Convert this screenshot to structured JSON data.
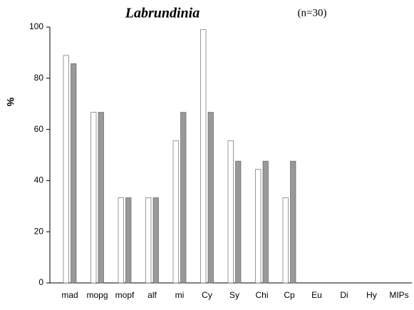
{
  "chart_data": {
    "type": "bar",
    "title": "Labrundinia",
    "annotation": "(n=30)",
    "y_label": "%",
    "categories": [
      "mad",
      "mopg",
      "mopf",
      "alf",
      "mi",
      "Cy",
      "Sy",
      "Chi",
      "Cp",
      "Eu",
      "Di",
      "Hy",
      "MIPs"
    ],
    "series": [
      {
        "color": "#ffffff",
        "values": [
          88.9,
          66.7,
          33.3,
          33.3,
          55.6,
          99,
          55.6,
          44.4,
          33.3,
          0,
          0,
          0,
          0
        ]
      },
      {
        "color": "#999999",
        "values": [
          85.7,
          66.7,
          33.3,
          33.3,
          66.7,
          66.7,
          47.6,
          47.6,
          47.6,
          0,
          0,
          0,
          0
        ]
      }
    ],
    "ylim": [
      0,
      100
    ],
    "yticks": [
      0,
      20,
      40,
      60,
      80,
      100
    ],
    "grid": false
  }
}
